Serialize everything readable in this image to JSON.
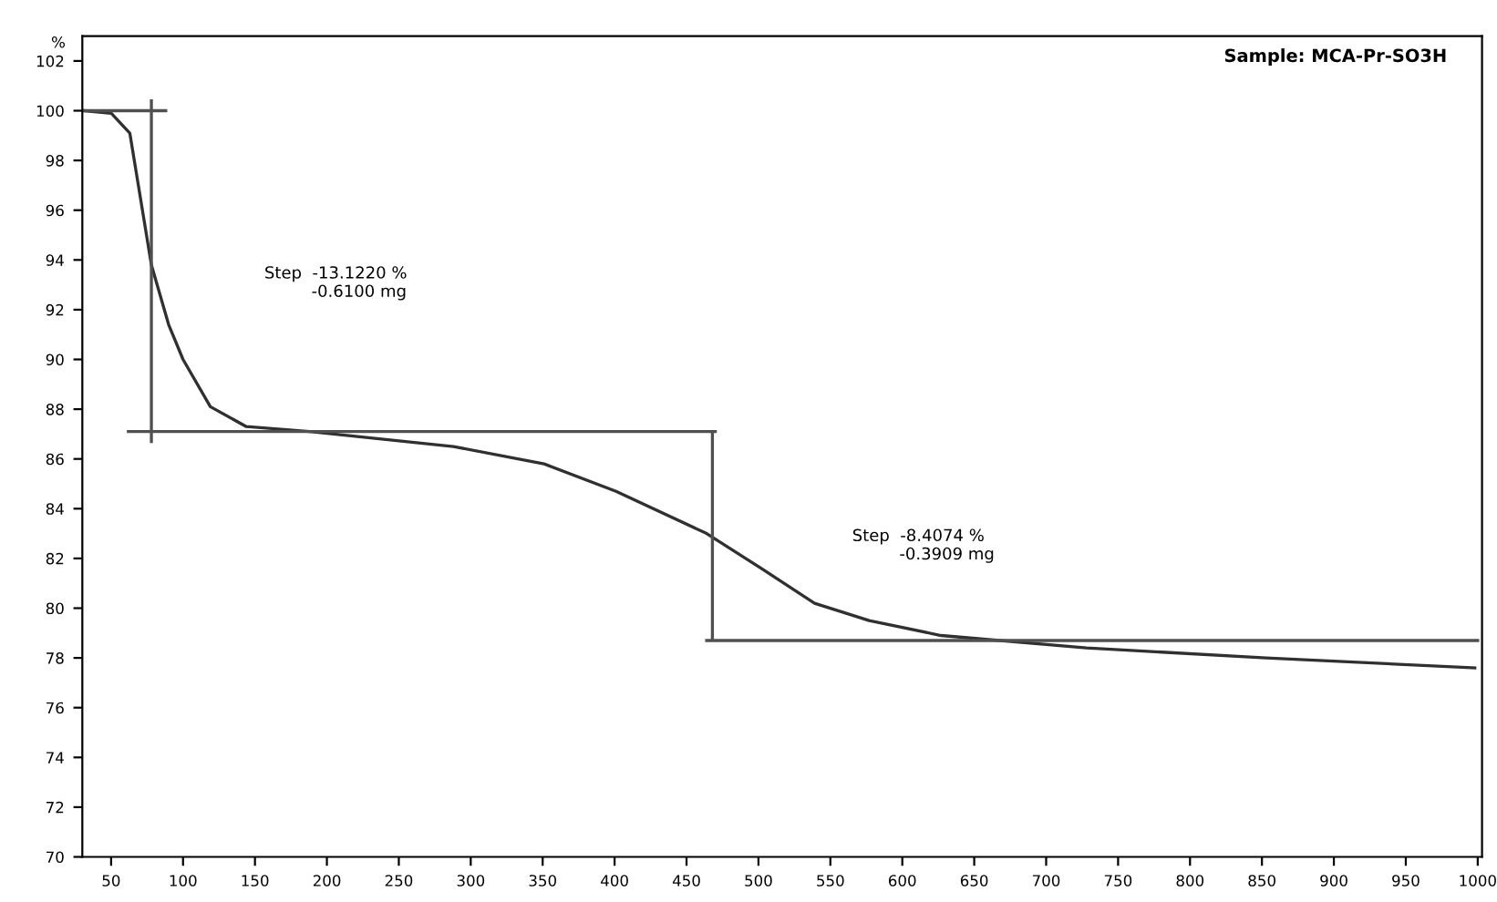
{
  "chart_data": {
    "type": "line",
    "title": "Sample: MCA-Pr-SO3H",
    "ylabel": "%",
    "xlim": [
      30,
      1003
    ],
    "xticks": [
      50,
      100,
      150,
      200,
      250,
      300,
      350,
      400,
      450,
      500,
      550,
      600,
      650,
      700,
      750,
      800,
      850,
      900,
      950,
      1000
    ],
    "ylim": [
      70,
      103
    ],
    "yticks": [
      70,
      72,
      74,
      76,
      78,
      80,
      82,
      84,
      86,
      88,
      90,
      92,
      94,
      96,
      98,
      100,
      102
    ],
    "grid": false,
    "series": [
      {
        "color": "#303030",
        "line_style": "solid",
        "x": [
          31,
          50,
          63,
          78,
          90,
          100,
          119,
          144,
          188,
          288,
          351,
          401,
          464,
          502,
          539,
          577,
          627,
          728,
          853,
          998
        ],
        "values": [
          100.0,
          99.9,
          99.1,
          93.8,
          91.4,
          90.0,
          88.1,
          87.3,
          87.1,
          86.5,
          85.8,
          84.7,
          83.0,
          81.6,
          80.2,
          79.5,
          78.9,
          78.4,
          78.0,
          77.6
        ]
      },
      {
        "color": "#505050",
        "line_style": "solid",
        "x": [
          31,
          88,
          null,
          78,
          78,
          null,
          62,
          470,
          null,
          468,
          468,
          null,
          464,
          1000
        ],
        "values": [
          100.0,
          100.0,
          null,
          100.4,
          86.7,
          null,
          87.1,
          87.1,
          null,
          87.1,
          78.7,
          null,
          78.7,
          78.7
        ]
      }
    ],
    "annotations": [
      "Step  -13.1220 %\n         -0.6100 mg",
      "Step  -8.4074 %\n         -0.3909 mg"
    ]
  }
}
